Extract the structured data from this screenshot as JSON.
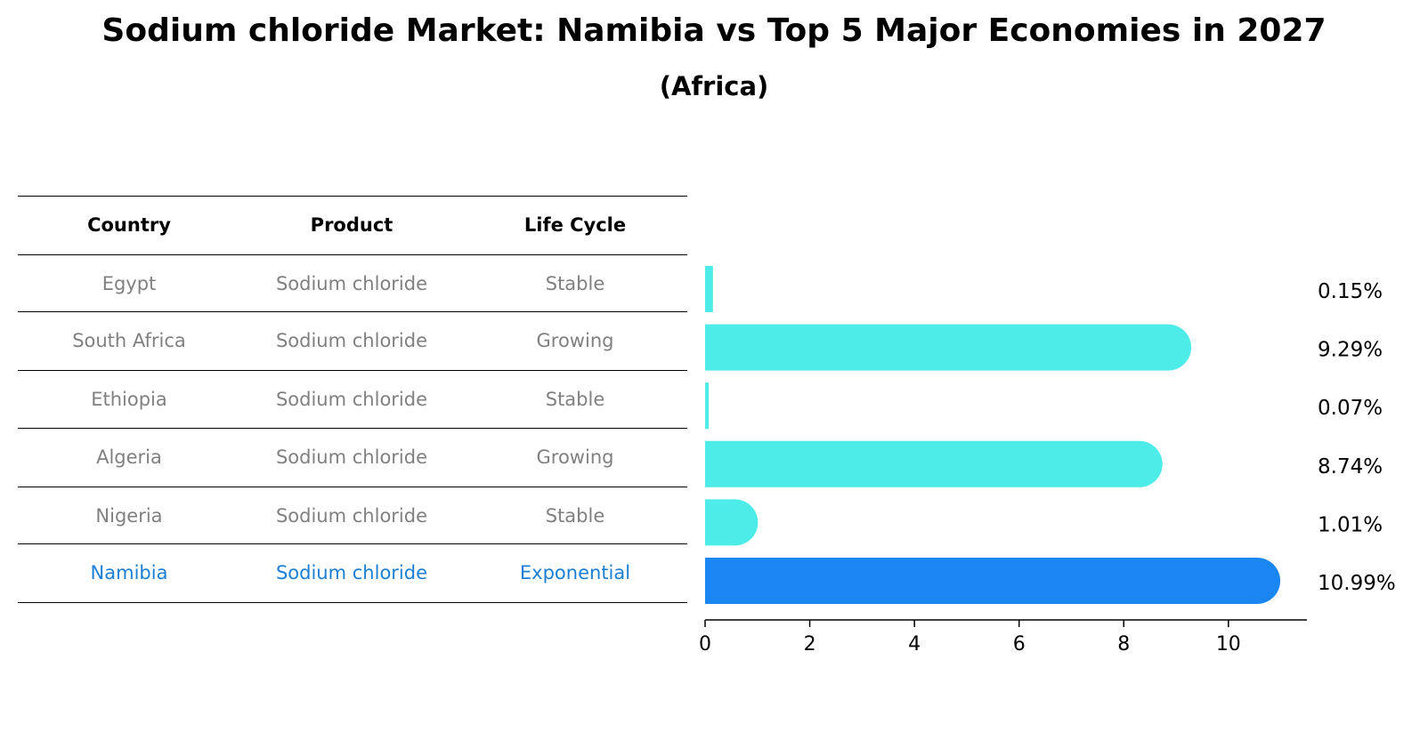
{
  "chart_data": {
    "type": "bar",
    "orientation": "horizontal",
    "title": "Sodium chloride Market: Namibia vs Top 5 Major Economies in 2027",
    "subtitle": "(Africa)",
    "table": {
      "headers": [
        "Country",
        "Product",
        "Life Cycle"
      ],
      "rows": [
        {
          "country": "Egypt",
          "product": "Sodium chloride",
          "life_cycle": "Stable"
        },
        {
          "country": "South Africa",
          "product": "Sodium chloride",
          "life_cycle": "Growing"
        },
        {
          "country": "Ethiopia",
          "product": "Sodium chloride",
          "life_cycle": "Stable"
        },
        {
          "country": "Algeria",
          "product": "Sodium chloride",
          "life_cycle": "Growing"
        },
        {
          "country": "Nigeria",
          "product": "Sodium chloride",
          "life_cycle": "Stable"
        },
        {
          "country": "Namibia",
          "product": "Sodium chloride",
          "life_cycle": "Exponential"
        }
      ]
    },
    "categories": [
      "Egypt",
      "South Africa",
      "Ethiopia",
      "Algeria",
      "Nigeria",
      "Namibia"
    ],
    "values": [
      0.15,
      9.29,
      0.07,
      8.74,
      1.01,
      10.99
    ],
    "value_labels": [
      "0.15%",
      "9.29%",
      "0.07%",
      "8.74%",
      "1.01%",
      "10.99%"
    ],
    "highlight_index": 5,
    "xlim": [
      0,
      11.5
    ],
    "xticks": [
      0,
      2,
      4,
      6,
      8,
      10
    ],
    "xlabel": "",
    "ylabel": "",
    "grid": false,
    "colors": {
      "bar": "#4dece9",
      "highlight_bar": "#1a86f2",
      "highlight_text": "#1a7fd4",
      "row_text": "#808080"
    }
  }
}
